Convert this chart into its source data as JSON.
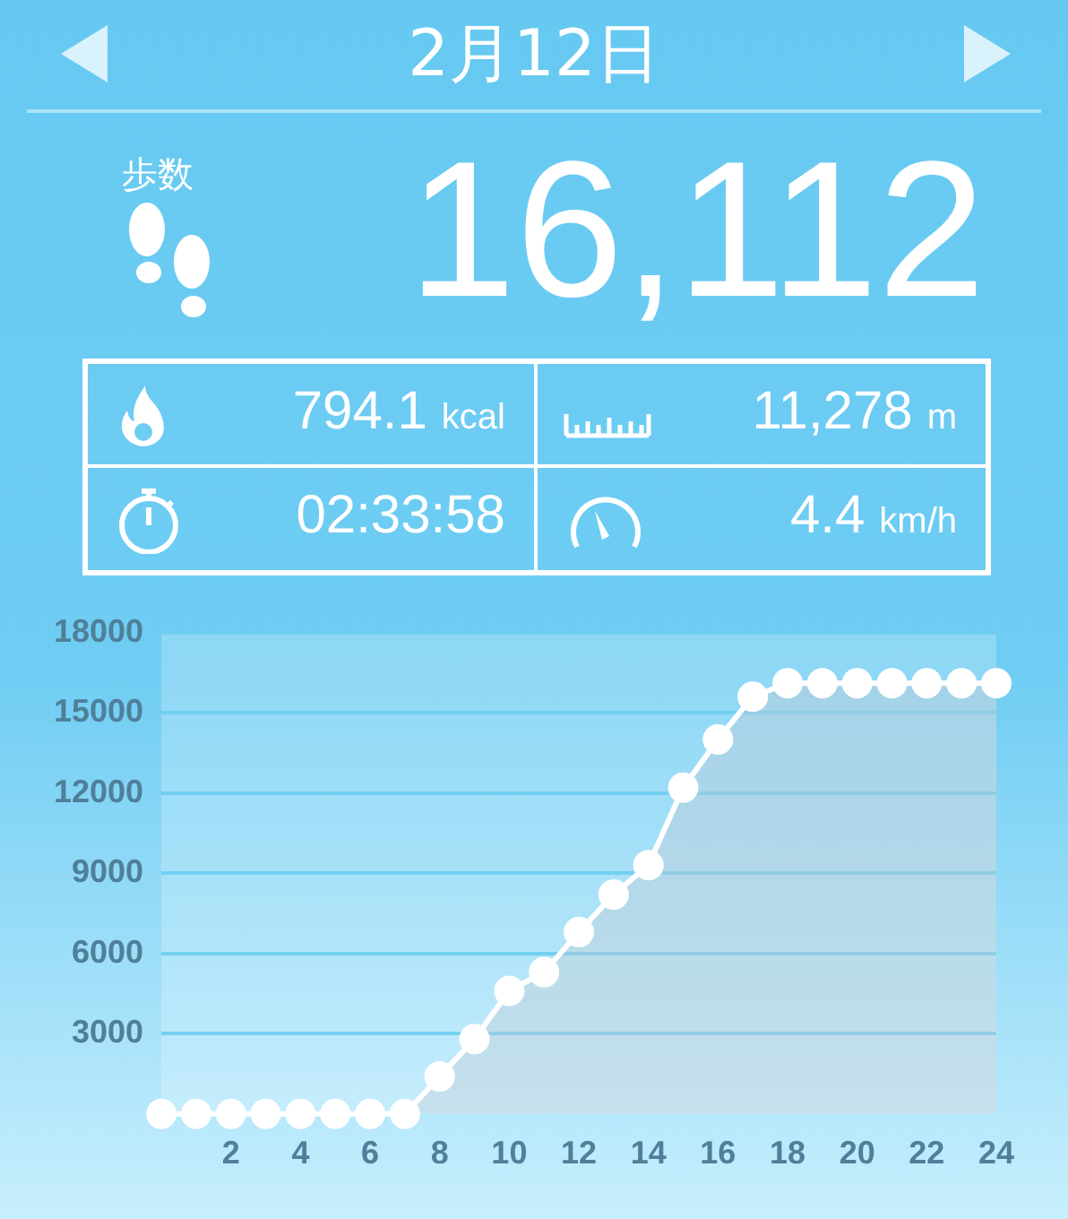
{
  "chart_data": {
    "type": "area",
    "title": "2月12日",
    "annotations": [
      "歩数",
      "16,112",
      "794.1 kcal",
      "11,278 m",
      "02:33:58",
      "4.4 km/h"
    ],
    "x": [
      0,
      1,
      2,
      3,
      4,
      5,
      6,
      7,
      8,
      9,
      10,
      11,
      12,
      13,
      14,
      15,
      16,
      17,
      18,
      19,
      20,
      21,
      22,
      23,
      24
    ],
    "series": [
      {
        "color": "#ffffff",
        "values": [
          0,
          0,
          0,
          0,
          0,
          0,
          0,
          0,
          1400,
          2800,
          4600,
          5300,
          6800,
          8200,
          9300,
          12200,
          14000,
          15600,
          16100,
          16100,
          16100,
          16100,
          16100,
          16100,
          16100
        ]
      }
    ],
    "xlim": [
      0,
      24
    ],
    "xticks": [
      2,
      4,
      6,
      8,
      10,
      12,
      14,
      16,
      18,
      20,
      22,
      24
    ],
    "ylim": [
      0,
      18000
    ],
    "yticks": [
      3000,
      6000,
      9000,
      12000,
      15000,
      18000
    ],
    "grid": "y",
    "marker": "circle",
    "legend": false
  }
}
